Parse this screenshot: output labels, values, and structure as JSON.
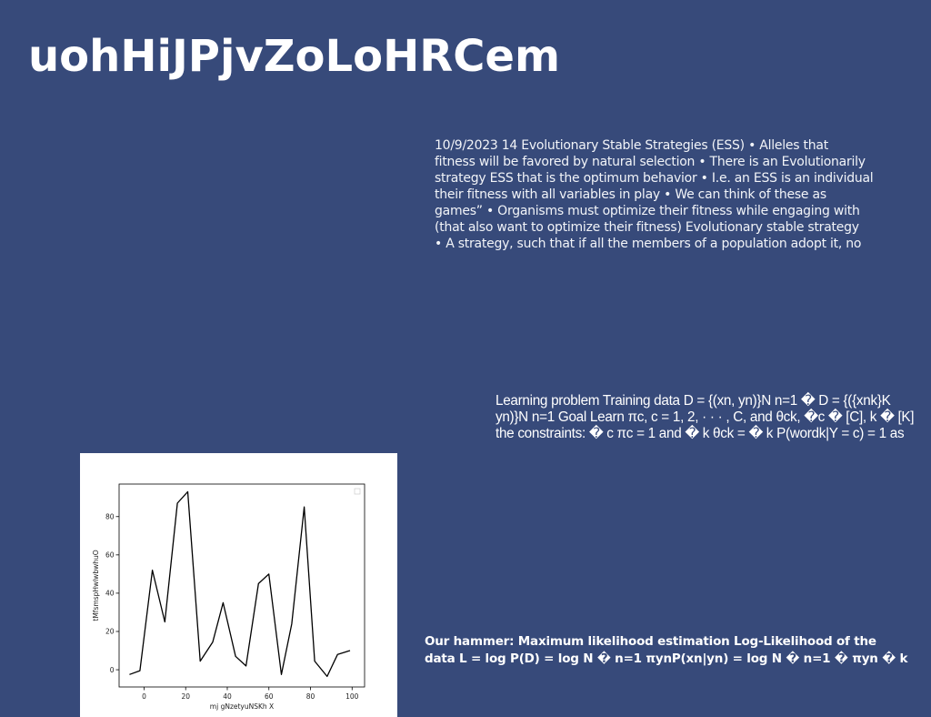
{
  "page": {
    "title": "uohHiJPjvZoLoHRCem"
  },
  "text_blocks": [
    {
      "lines": [
        "10/9/2023 14 Evolutionary Stable Strategies (ESS) • Alleles that",
        "fitness will be favored by natural selection • There is an Evolutionarily",
        "strategy ESS that is the optimum behavior • I.e. an ESS is an individual",
        "their fitness with all variables in play • We can think of these as",
        "games” • Organisms must optimize their fitness while engaging with",
        "(that also want to optimize their fitness) Evolutionary stable strategy",
        "• A strategy, such that if all the members of a population adopt it, no"
      ]
    },
    {
      "lines": [
        "Learning problem Training data D = {(xn, yn)}N n=1 � D = {({xnk}K",
        "yn)}N n=1 Goal Learn πc, c = 1, 2, · · · , C, and θck, �c � [C], k � [K]",
        "the constraints: � c πc = 1 and � k θck = � k P(wordk|Y = c) = 1 as"
      ]
    },
    {
      "lines": [
        "Our hammer: Maximum likelihood estimation Log-Likelihood of the",
        "data L = log P(D) = log N � n=1 πynP(xn|yn) = log N � n=1 � πyn � k"
      ]
    }
  ],
  "chart_data": {
    "type": "line",
    "title": "",
    "xlabel": "mj gNzetyuNSKh X",
    "ylabel": "tMfsmspHwlwbwhuO",
    "xlim": [
      -12,
      106
    ],
    "ylim": [
      -9,
      97
    ],
    "xticks": [
      0,
      20,
      40,
      60,
      80,
      100
    ],
    "yticks": [
      0,
      20,
      40,
      60,
      80
    ],
    "grid": false,
    "legend": "top-right (empty)",
    "line_color": "#000000",
    "series": [
      {
        "x": [
          -7,
          -2,
          4,
          10,
          16,
          21,
          27,
          33,
          38,
          44,
          49,
          55,
          60,
          66,
          71,
          77,
          82,
          88,
          93,
          99
        ],
        "values": [
          -2.5,
          -0.5,
          52,
          25,
          87,
          93,
          4.5,
          14.5,
          35,
          7,
          2,
          45,
          50,
          -2.5,
          24,
          85,
          4.5,
          -3.5,
          8,
          10
        ]
      }
    ]
  }
}
